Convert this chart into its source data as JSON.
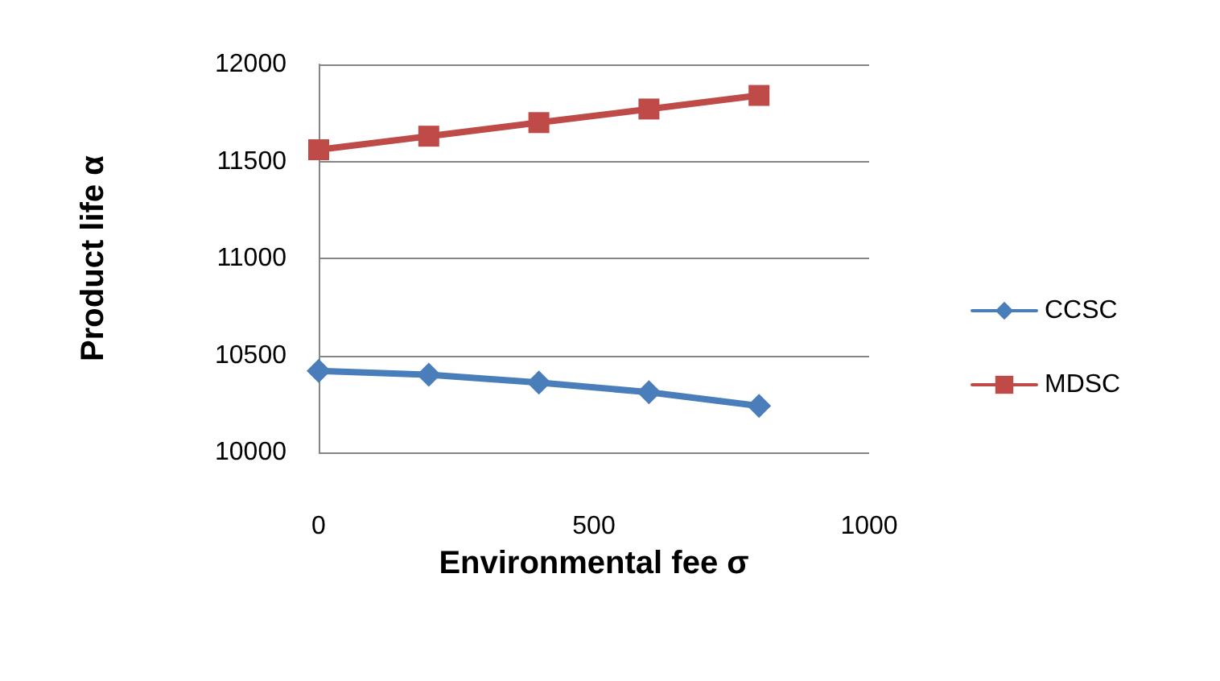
{
  "chart_data": {
    "type": "line",
    "xlabel": "Environmental fee σ",
    "ylabel": "Product life α",
    "x": [
      0,
      200,
      400,
      600,
      800
    ],
    "series": [
      {
        "name": "CCSC",
        "color": "#4a7ebb",
        "marker": "diamond",
        "values": [
          10420,
          10400,
          10360,
          10310,
          10240
        ]
      },
      {
        "name": "MDSC",
        "color": "#be4b48",
        "marker": "square",
        "values": [
          11560,
          11630,
          11700,
          11770,
          11840
        ]
      }
    ],
    "xlim": [
      0,
      1000
    ],
    "xticks": [
      0,
      500,
      1000
    ],
    "ylim": [
      10000,
      12000
    ],
    "yticks": [
      10000,
      10500,
      11000,
      11500,
      12000
    ],
    "grid": "y",
    "legend": "right"
  }
}
